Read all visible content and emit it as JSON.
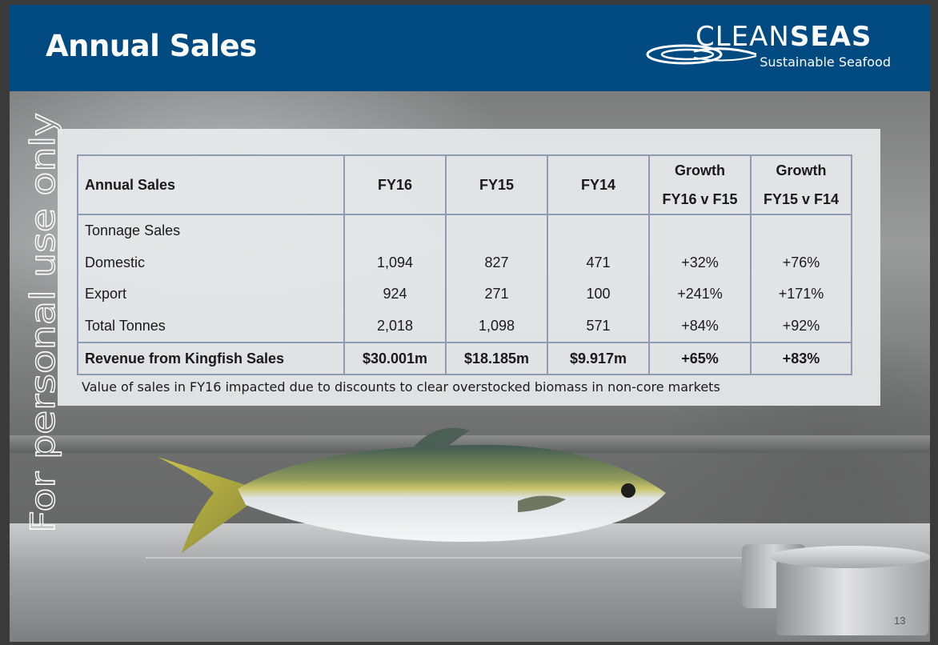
{
  "header": {
    "title": "Annual Sales",
    "logo": {
      "word_light": "CLEAN",
      "word_bold": "SEAS",
      "tagline": "Sustainable Seafood"
    }
  },
  "watermark": "For personal use only",
  "table": {
    "headers": [
      {
        "line1": "Annual Sales",
        "line2": ""
      },
      {
        "line1": "FY16",
        "line2": ""
      },
      {
        "line1": "FY15",
        "line2": ""
      },
      {
        "line1": "FY14",
        "line2": ""
      },
      {
        "line1": "Growth",
        "line2": "FY16 v F15"
      },
      {
        "line1": "Growth",
        "line2": "FY15 v F14"
      }
    ],
    "rows": [
      [
        "Tonnage Sales",
        "",
        "",
        "",
        "",
        ""
      ],
      [
        "Domestic",
        "1,094",
        "827",
        "471",
        "+32%",
        "+76%"
      ],
      [
        "Export",
        "924",
        "271",
        "100",
        "+241%",
        "+171%"
      ],
      [
        "Total Tonnes",
        "2,018",
        "1,098",
        "571",
        "+84%",
        "+92%"
      ]
    ],
    "total_row": [
      "Revenue from Kingfish Sales",
      "$30.001m",
      "$18.185m",
      "$9.917m",
      "+65%",
      "+83%"
    ]
  },
  "note": "Value of sales in FY16 impacted due to discounts to clear overstocked biomass in non-core markets",
  "page_number": "13"
}
